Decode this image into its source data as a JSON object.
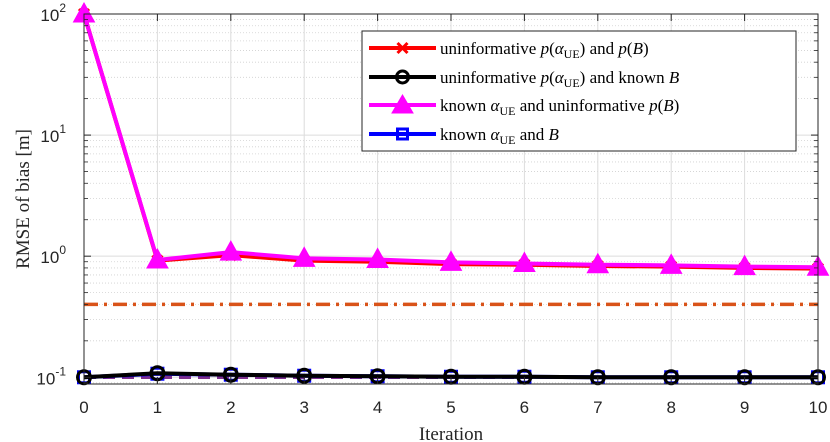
{
  "chart_data": {
    "type": "line",
    "title": "",
    "xlabel": "Iteration",
    "ylabel": "RMSE of bias [m]",
    "xlim": [
      0,
      10
    ],
    "ylim": [
      0.088,
      100
    ],
    "yscale": "log",
    "grid": true,
    "x": [
      0,
      1,
      2,
      3,
      4,
      5,
      6,
      7,
      8,
      9,
      10
    ],
    "x_ticks": [
      "0",
      "1",
      "2",
      "3",
      "4",
      "5",
      "6",
      "7",
      "8",
      "9",
      "10"
    ],
    "y_ticks": [
      {
        "value": 0.1,
        "base": "10",
        "exp": "-1"
      },
      {
        "value": 1,
        "base": "10",
        "exp": "0"
      },
      {
        "value": 10,
        "base": "10",
        "exp": "1"
      },
      {
        "value": 100,
        "base": "10",
        "exp": "2"
      }
    ],
    "legend_position": "top-right",
    "series": [
      {
        "name": "uninformative p(α_UE) and p(B)",
        "legend": {
          "t1": "uninformative ",
          "t2": "p",
          "t3": "(",
          "t4": "α",
          "t5": "UE",
          "t6": ") and ",
          "t7": "p",
          "t8": "(",
          "t9": "B",
          "t10": ")"
        },
        "color": "#ff0000",
        "marker": "x",
        "values": [
          100,
          0.92,
          1.02,
          0.92,
          0.9,
          0.86,
          0.85,
          0.83,
          0.82,
          0.8,
          0.79
        ]
      },
      {
        "name": "uninformative p(α_UE) and known B",
        "legend": {
          "t1": "uninformative ",
          "t2": "p",
          "t3": "(",
          "t4": "α",
          "t5": "UE",
          "t6": ") and known ",
          "t7": "B"
        },
        "color": "#000000",
        "marker": "circle",
        "values": [
          0.1,
          0.108,
          0.105,
          0.103,
          0.102,
          0.101,
          0.101,
          0.1,
          0.1,
          0.1,
          0.1
        ]
      },
      {
        "name": "known α_UE and uninformative p(B)",
        "legend": {
          "t1": "known ",
          "t2": "α",
          "t3": "UE",
          "t4": " and uninformative ",
          "t5": "p",
          "t6": "(",
          "t7": "B",
          "t8": ")"
        },
        "color": "#ff00ff",
        "marker": "triangle",
        "values": [
          100,
          0.93,
          1.08,
          0.96,
          0.94,
          0.89,
          0.87,
          0.85,
          0.84,
          0.82,
          0.81
        ]
      },
      {
        "name": "known α_UE and B",
        "legend": {
          "t1": "known ",
          "t2": "α",
          "t3": "UE",
          "t4": " and ",
          "t5": "B"
        },
        "color": "#0000ff",
        "marker": "square",
        "values": [
          0.1,
          0.107,
          0.105,
          0.103,
          0.102,
          0.101,
          0.101,
          0.1,
          0.1,
          0.1,
          0.1
        ]
      }
    ],
    "reference_lines": [
      {
        "name": "bound-1",
        "value": 0.4,
        "color": "#d95319",
        "style": "dash-dot"
      },
      {
        "name": "bound-2",
        "value": 0.1,
        "color": "#7e2f8e",
        "style": "dashed"
      }
    ]
  }
}
